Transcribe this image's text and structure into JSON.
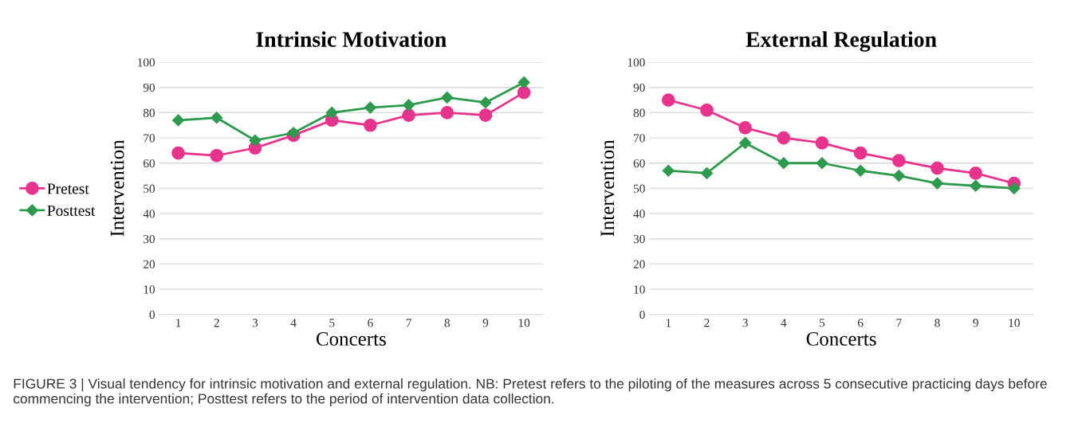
{
  "chart_data": [
    {
      "type": "line",
      "title": "Intrinsic Motivation",
      "xlabel": "Concerts",
      "ylabel": "Intervention",
      "categories": [
        "1",
        "2",
        "3",
        "4",
        "5",
        "6",
        "7",
        "8",
        "9",
        "10"
      ],
      "series": [
        {
          "name": "Pretest",
          "color": "#e8338c",
          "marker": "circle",
          "values": [
            64,
            63,
            66,
            71,
            77,
            75,
            79,
            80,
            79,
            88
          ]
        },
        {
          "name": "Posttest",
          "color": "#2e9a4e",
          "marker": "diamond",
          "values": [
            77,
            78,
            69,
            72,
            80,
            82,
            83,
            86,
            84,
            92
          ]
        }
      ],
      "ylim": [
        0,
        100
      ],
      "yticks": [
        0,
        10,
        20,
        30,
        40,
        50,
        60,
        70,
        80,
        90,
        100
      ],
      "grid": "y",
      "legend": "left",
      "annotations": [
        "FIGURE 3 | Visual tendency for intrinsic motivation and external regulation. NB: Pretest refers to the piloting of the measures across 5 consecutive practicing days before commencing the intervention; Posttest refers to the period of intervention data collection."
      ]
    },
    {
      "type": "line",
      "title": "External Regulation",
      "xlabel": "Concerts",
      "ylabel": "Intervention",
      "categories": [
        "1",
        "2",
        "3",
        "4",
        "5",
        "6",
        "7",
        "8",
        "9",
        "10"
      ],
      "series": [
        {
          "color": "#e8338c",
          "marker": "circle",
          "values": [
            85,
            81,
            74,
            70,
            68,
            64,
            61,
            58,
            56,
            52
          ]
        },
        {
          "color": "#2e9a4e",
          "marker": "diamond",
          "values": [
            57,
            56,
            68,
            60,
            60,
            57,
            55,
            52,
            51,
            50
          ]
        }
      ],
      "ylim": [
        0,
        100
      ],
      "yticks": [
        0,
        10,
        20,
        30,
        40,
        50,
        60,
        70,
        80,
        90,
        100
      ],
      "grid": "y"
    }
  ]
}
